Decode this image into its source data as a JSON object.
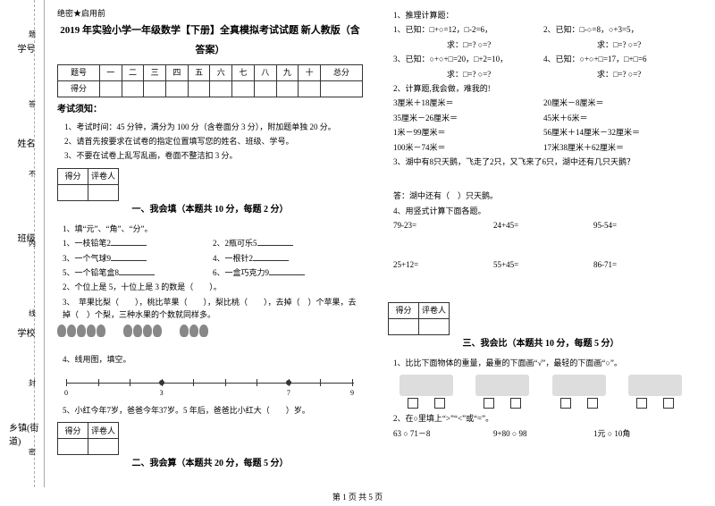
{
  "spine": {
    "labels": [
      "学号",
      "姓名",
      "班级",
      "学校",
      "乡镇(街道)"
    ],
    "marks": [
      "题",
      "答",
      "不",
      "内",
      "线",
      "封",
      "密"
    ]
  },
  "conf": "绝密★启用前",
  "title1": "2019 年实验小学一年级数学【下册】全真模拟考试试题 新人教版（含",
  "title2": "答案）",
  "scorehead": [
    "题号",
    "一",
    "二",
    "三",
    "四",
    "五",
    "六",
    "七",
    "八",
    "九",
    "十",
    "总分"
  ],
  "scorerow": "得分",
  "notice_h": "考试须知：",
  "notices": [
    "1、考试时间：45 分钟，满分为 100 分（含卷面分 3 分），附加题单独 20 分。",
    "2、请首先按要求在试卷的指定位置填写您的姓名、班级、学号。",
    "3、不要在试卷上乱写乱画，卷面不整洁扣 3 分。"
  ],
  "box_l": "得分",
  "box_r": "评卷人",
  "sect1": "一、我会填（本题共 10 分，每题 2 分）",
  "s1q1": "1、填“元”、“角”、“分”。",
  "s1q1a": "1、一枝铅笔2",
  "s1q1b": "2、2瓶可乐5",
  "s1q1c": "3、一个气球9",
  "s1q1d": "4、一根针2",
  "s1q1e": "5、一个铅笔盒8",
  "s1q1f": "6、一盒巧克力9",
  "s1q2": "2、个位上是 5，十位上是 3 的数是（　　）。",
  "s1q3": "3、　苹果比梨（　　），桃比苹果（　　），梨比桃（　　），去掉（　）个苹果，去掉（　）个梨，三种水果的个数就同样多。",
  "s1q4": "4、线用图，填空。",
  "s1q5": "5、小红今年7岁，爸爸今年37岁。5 年后，爸爸比小红大（　　）岁。",
  "sect2": "二、我会算（本题共 20 分，每题 5 分）",
  "s2q1": "1、推理计算题：",
  "s2q1a": "1、已知：□+○=12，□-2=6，",
  "s2q1a2": "2、已知：□-○=8，○+3=5，",
  "s2q1ar": "求：□=? ○=?",
  "s2q1ar2": "求：□=? ○=?",
  "s2q1b": "3、已知：○+○+□=20，□+2=10，",
  "s2q1b2": "4、已知：○+○+□=17，□+□=6",
  "s2q1br": "求：□=? ○=?",
  "s2q1br2": "求：□=? ○=?",
  "s2q2": "2、计算题,我会做，难我的!",
  "s2r": [
    [
      "3厘米＋18厘米＝",
      "20厘米－8厘米＝"
    ],
    [
      "35厘米－26厘米＝",
      "45米＋6米＝"
    ],
    [
      "1米－99厘米＝",
      "56厘米＋14厘米－32厘米＝"
    ],
    [
      "100米－74米＝",
      "17米38厘米＋62厘米＝"
    ]
  ],
  "s2q3": "3、湖中有8只天鹅，飞走了2只，又飞来了6只，湖中还有几只天鹅？",
  "s2q3a": "答：湖中还有（　）只天鹅。",
  "s2q4": "4、用竖式计算下面各题。",
  "s2q4r1": [
    "79-23=",
    "24+45=",
    "95-54="
  ],
  "s2q4r2": [
    "25+12=",
    "55+45=",
    "86-71="
  ],
  "sect3": "三、我会比（本题共 10 分，每题 5 分）",
  "s3q1": "1、比比下面物体的重量，最重的下面画“√”，最轻的下面画“○”。",
  "s3q2": "2、在○里填上“>”“<”或“=”。",
  "s3q2r": [
    "63 ○ 71－8",
    "9+80 ○ 98",
    "1元 ○ 10角"
  ],
  "footer": "第 1 页 共 5 页",
  "nline": {
    "start": 0,
    "ticks": [
      0,
      1,
      2,
      3,
      4,
      5,
      6,
      7,
      8,
      9
    ],
    "labels": {
      "0": "0",
      "3": "3",
      "7": "7",
      "9": "9"
    },
    "dots": [
      3,
      7
    ]
  }
}
